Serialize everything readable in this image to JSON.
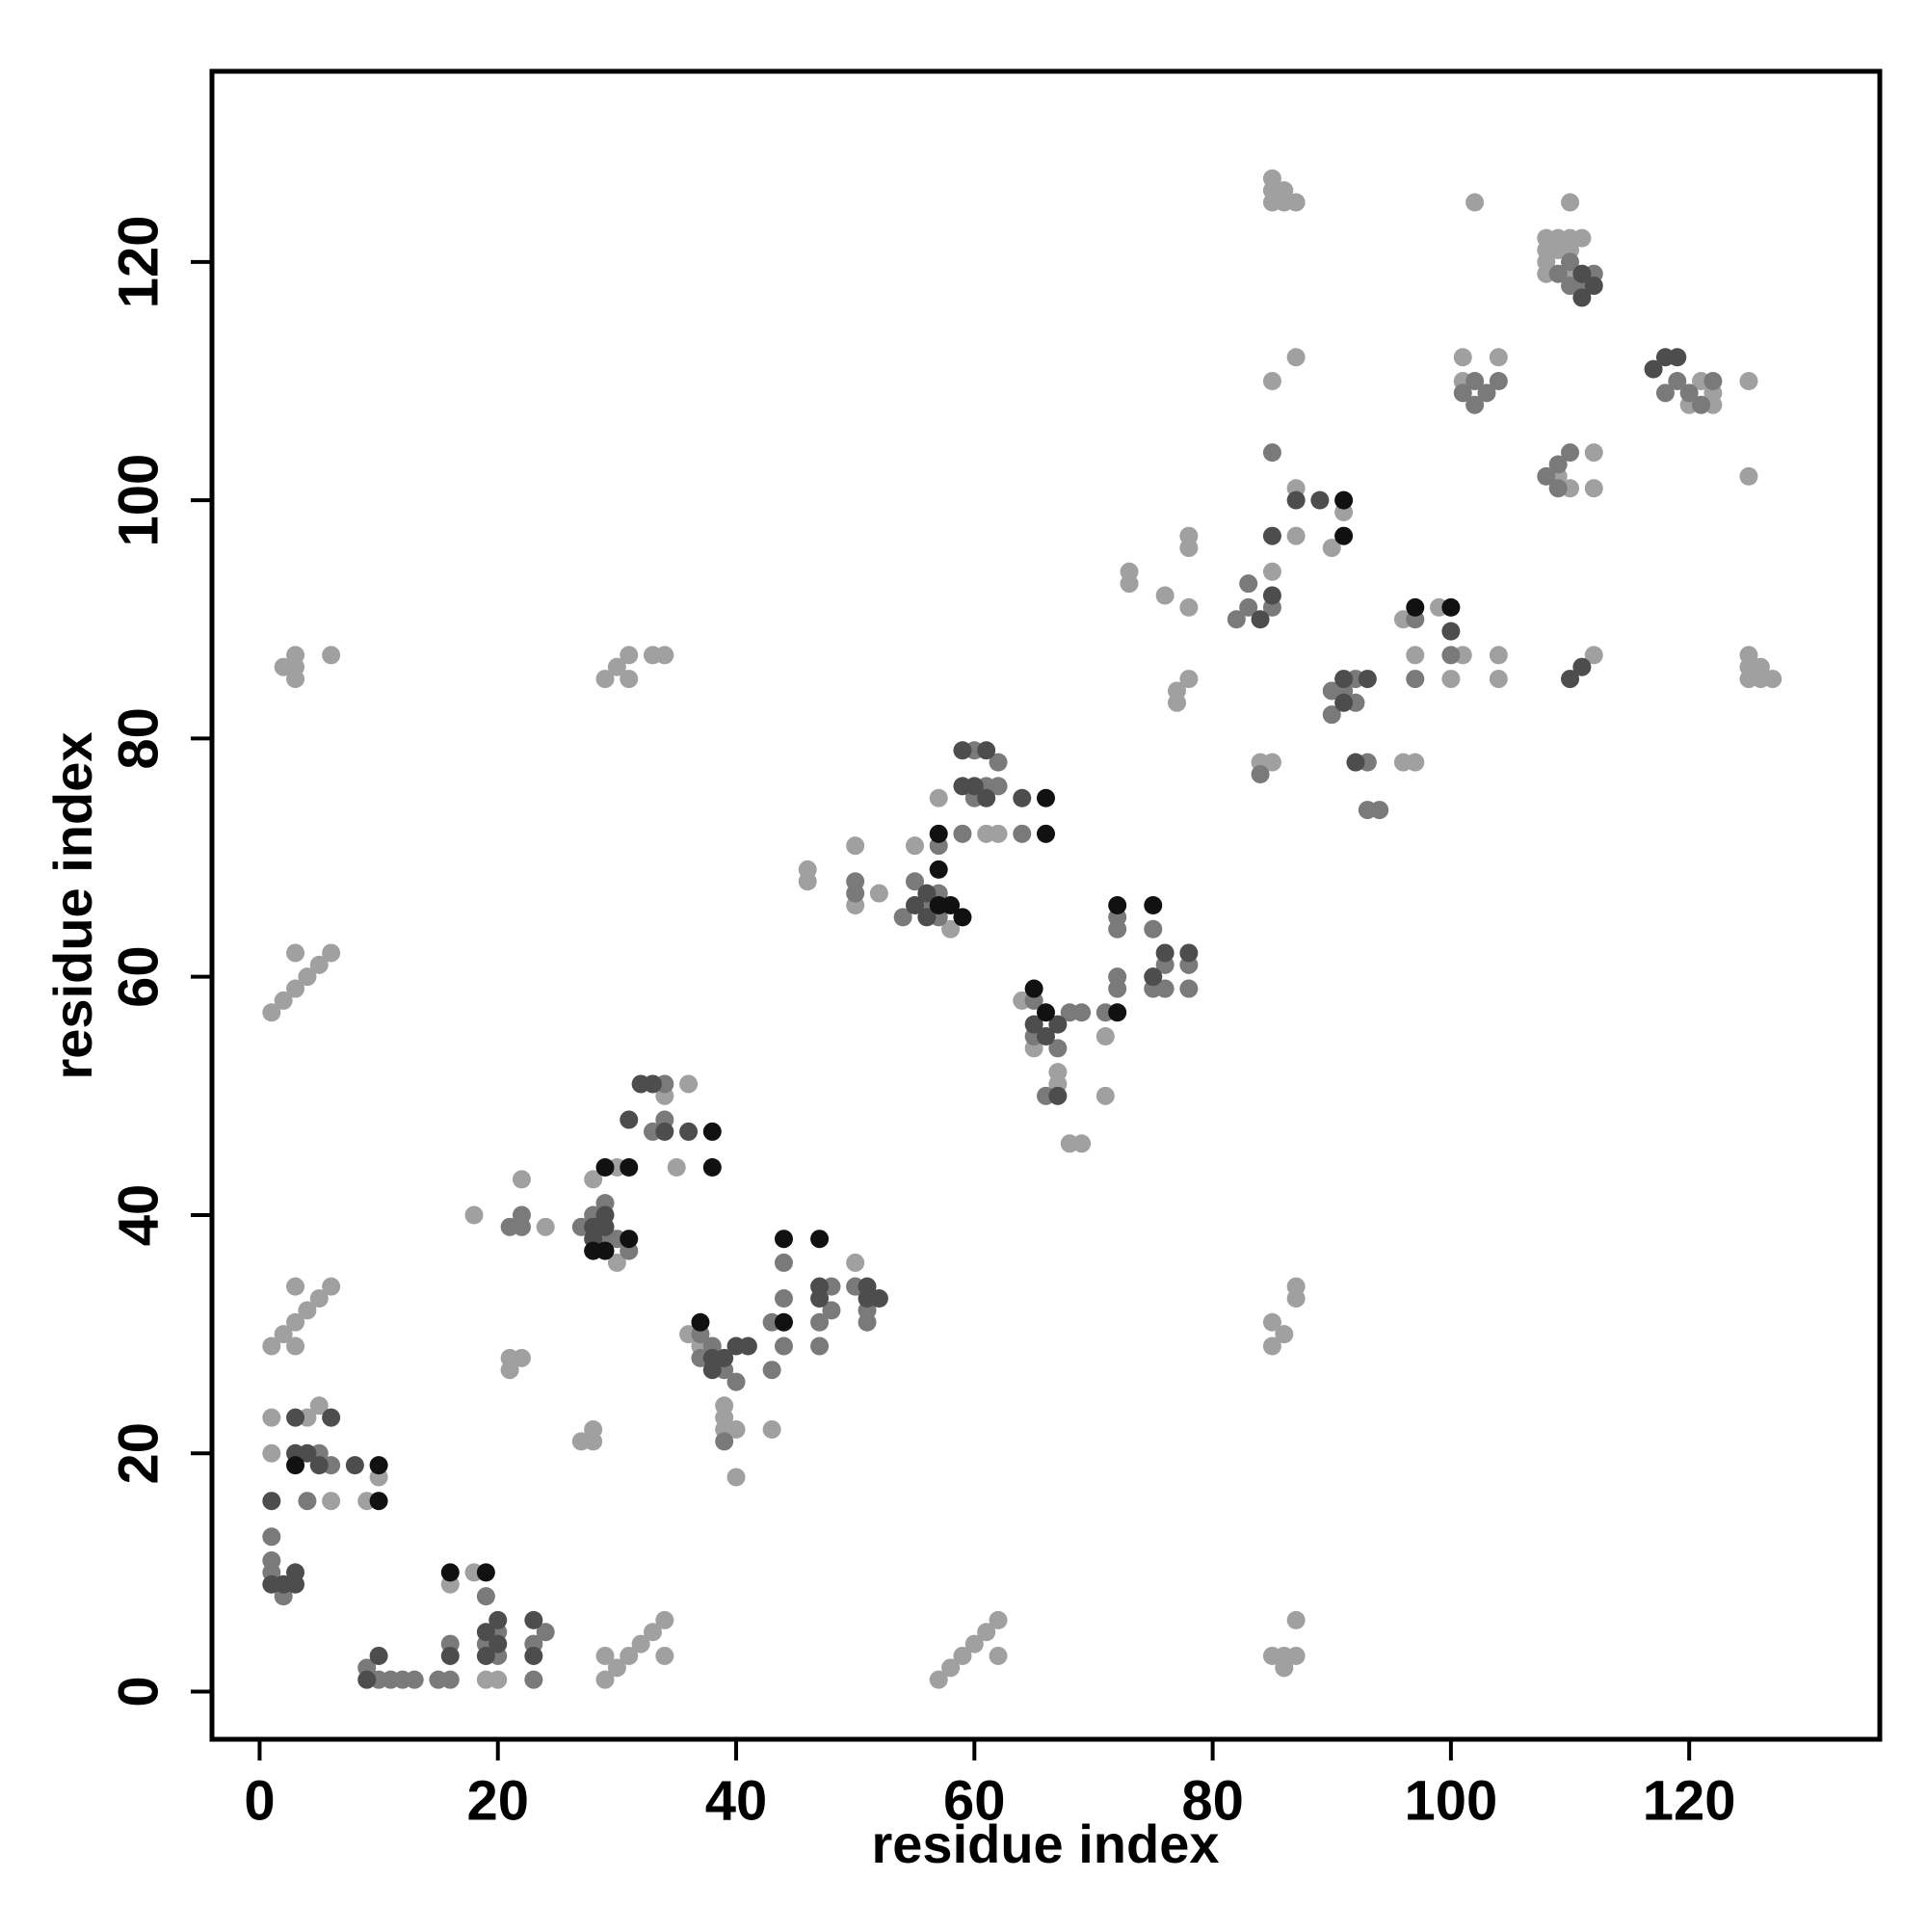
{
  "chart_data": {
    "type": "scatter",
    "x_label": "residue index",
    "y_label": "residue index",
    "xlim": [
      -4,
      136
    ],
    "ylim": [
      -4,
      136
    ],
    "xticks": [
      0,
      20,
      40,
      60,
      80,
      100,
      120
    ],
    "yticks": [
      0,
      20,
      40,
      60,
      80,
      100,
      120
    ],
    "grid": false,
    "series": [
      {
        "color": "#a0a0a0",
        "x": [
          1,
          2,
          3,
          4,
          5,
          6,
          3,
          1,
          2,
          3,
          4,
          5,
          6,
          3,
          3,
          2,
          3,
          3,
          3,
          6,
          29,
          30,
          31,
          31,
          33,
          34,
          29,
          30,
          31,
          32,
          33,
          34,
          34,
          29,
          57,
          58,
          59,
          60,
          61,
          62,
          62,
          85,
          86,
          86,
          87,
          87,
          85,
          85,
          86,
          87,
          87,
          1,
          1,
          4,
          5,
          6,
          9,
          10,
          16,
          18,
          20,
          19,
          21,
          21,
          22,
          27,
          28,
          28,
          18,
          22,
          24,
          28,
          30,
          30,
          34,
          35,
          36,
          36,
          37,
          39,
          39,
          39,
          40,
          40,
          43,
          50,
          50,
          46,
          46,
          50,
          50,
          52,
          55,
          58,
          57,
          61,
          62,
          64,
          65,
          67,
          67,
          68,
          69,
          71,
          71,
          73,
          73,
          77,
          77,
          78,
          78,
          78,
          78,
          76,
          84,
          85,
          85,
          85,
          87,
          87,
          87,
          90,
          91,
          96,
          97,
          96,
          97,
          99,
          101,
          104,
          104,
          100,
          101,
          101,
          104,
          102,
          85,
          85,
          85,
          86,
          86,
          87,
          110,
          108,
          109,
          110,
          108,
          109,
          108,
          110,
          125,
          125,
          125,
          125,
          125,
          126,
          126,
          127,
          120,
          121,
          122,
          122,
          109,
          110,
          112,
          112,
          108,
          112,
          111,
          110
        ],
        "y": [
          57,
          58,
          59,
          60,
          61,
          62,
          62,
          29,
          30,
          31,
          32,
          33,
          34,
          34,
          29,
          86,
          86,
          85,
          87,
          87,
          85,
          86,
          85,
          87,
          87,
          87,
          1,
          2,
          3,
          4,
          5,
          6,
          3,
          3,
          1,
          2,
          3,
          4,
          5,
          6,
          3,
          3,
          3,
          2,
          3,
          6,
          29,
          31,
          30,
          33,
          34,
          20,
          23,
          23,
          24,
          16,
          16,
          18,
          9,
          10,
          1,
          1,
          27,
          28,
          28,
          21,
          21,
          22,
          40,
          43,
          39,
          43,
          36,
          44,
          50,
          44,
          51,
          30,
          29,
          22,
          24,
          23,
          22,
          18,
          22,
          36,
          34,
          68,
          69,
          71,
          66,
          67,
          71,
          64,
          75,
          72,
          72,
          58,
          54,
          51,
          52,
          46,
          46,
          50,
          55,
          93,
          94,
          83,
          84,
          85,
          96,
          97,
          91,
          92,
          78,
          78,
          94,
          110,
          97,
          101,
          112,
          96,
          99,
          78,
          78,
          90,
          87,
          91,
          87,
          87,
          85,
          85,
          110,
          112,
          112,
          125,
          125,
          126,
          127,
          125,
          126,
          125,
          125,
          122,
          122,
          122,
          121,
          121,
          120,
          121,
          110,
          102,
          85,
          86,
          87,
          85,
          86,
          85,
          108,
          110,
          108,
          109,
          102,
          101,
          101,
          104,
          119,
          87,
          122,
          119
        ]
      },
      {
        "color": "#7a7a7a",
        "x": [
          1,
          1,
          1,
          2,
          4,
          6,
          5,
          9,
          10,
          11,
          12,
          13,
          15,
          16,
          16,
          19,
          19,
          20,
          20,
          23,
          23,
          24,
          22,
          21,
          22,
          27,
          28,
          29,
          29,
          30,
          31,
          33,
          34,
          34,
          37,
          37,
          38,
          39,
          39,
          40,
          43,
          43,
          44,
          44,
          44,
          47,
          47,
          48,
          48,
          51,
          51,
          50,
          50,
          50,
          54,
          55,
          56,
          57,
          57,
          57,
          59,
          60,
          60,
          61,
          62,
          62,
          64,
          65,
          65,
          66,
          67,
          68,
          69,
          71,
          72,
          72,
          72,
          72,
          75,
          75,
          76,
          76,
          78,
          78,
          82,
          83,
          83,
          84,
          85,
          85,
          90,
          90,
          91,
          92,
          92,
          93,
          93,
          94,
          97,
          97,
          100,
          101,
          102,
          102,
          103,
          104,
          108,
          109,
          109,
          110,
          112,
          118,
          119,
          120,
          121,
          122,
          110,
          109,
          110,
          111
        ],
        "y": [
          10,
          11,
          13,
          8,
          16,
          19,
          20,
          2,
          1,
          1,
          1,
          1,
          1,
          1,
          4,
          4,
          8,
          3,
          5,
          1,
          4,
          5,
          39,
          39,
          40,
          39,
          40,
          38,
          41,
          38,
          37,
          47,
          48,
          51,
          28,
          30,
          29,
          27,
          21,
          26,
          27,
          31,
          29,
          33,
          36,
          29,
          31,
          32,
          34,
          31,
          32,
          67,
          68,
          34,
          65,
          68,
          66,
          65,
          67,
          71,
          72,
          75,
          79,
          76,
          76,
          78,
          72,
          55,
          58,
          50,
          54,
          57,
          57,
          57,
          59,
          60,
          64,
          65,
          59,
          64,
          59,
          61,
          59,
          61,
          90,
          91,
          93,
          77,
          91,
          104,
          82,
          84,
          84,
          83,
          85,
          78,
          74,
          74,
          85,
          90,
          87,
          109,
          108,
          110,
          109,
          110,
          102,
          101,
          103,
          104,
          119,
          109,
          110,
          109,
          108,
          110,
          120,
          119,
          118,
          118
        ]
      },
      {
        "color": "#4d4d4d",
        "x": [
          3,
          3,
          4,
          5,
          6,
          1,
          2,
          3,
          3,
          1,
          8,
          9,
          10,
          19,
          19,
          20,
          20,
          23,
          23,
          16,
          28,
          28,
          29,
          29,
          31,
          32,
          33,
          34,
          36,
          38,
          38,
          39,
          40,
          41,
          47,
          47,
          51,
          51,
          52,
          55,
          56,
          56,
          59,
          59,
          60,
          61,
          61,
          64,
          65,
          66,
          67,
          67,
          75,
          76,
          78,
          84,
          85,
          85,
          89,
          91,
          91,
          92,
          93,
          100,
          112,
          111,
          111,
          118,
          119,
          117,
          110,
          111,
          87
        ],
        "y": [
          20,
          23,
          20,
          19,
          23,
          9,
          9,
          9,
          10,
          16,
          19,
          1,
          3,
          3,
          5,
          4,
          6,
          3,
          6,
          3,
          38,
          39,
          39,
          40,
          48,
          51,
          51,
          47,
          47,
          27,
          28,
          28,
          29,
          29,
          33,
          34,
          33,
          34,
          33,
          66,
          65,
          67,
          76,
          79,
          76,
          75,
          79,
          75,
          56,
          55,
          56,
          50,
          60,
          62,
          62,
          90,
          92,
          97,
          100,
          83,
          85,
          78,
          85,
          89,
          118,
          119,
          117,
          112,
          112,
          111,
          85,
          86,
          100
        ]
      },
      {
        "color": "#111111",
        "x": [
          10,
          10,
          3,
          16,
          19,
          29,
          31,
          38,
          38,
          28,
          29,
          31,
          44,
          44,
          47,
          37,
          57,
          57,
          58,
          59,
          57,
          66,
          66,
          65,
          66,
          72,
          75,
          72,
          91,
          91,
          97,
          100
        ],
        "y": [
          16,
          19,
          19,
          10,
          10,
          44,
          44,
          44,
          47,
          37,
          37,
          38,
          31,
          38,
          38,
          31,
          72,
          69,
          66,
          65,
          66,
          72,
          75,
          59,
          57,
          66,
          66,
          57,
          97,
          100,
          91,
          91
        ]
      }
    ]
  }
}
